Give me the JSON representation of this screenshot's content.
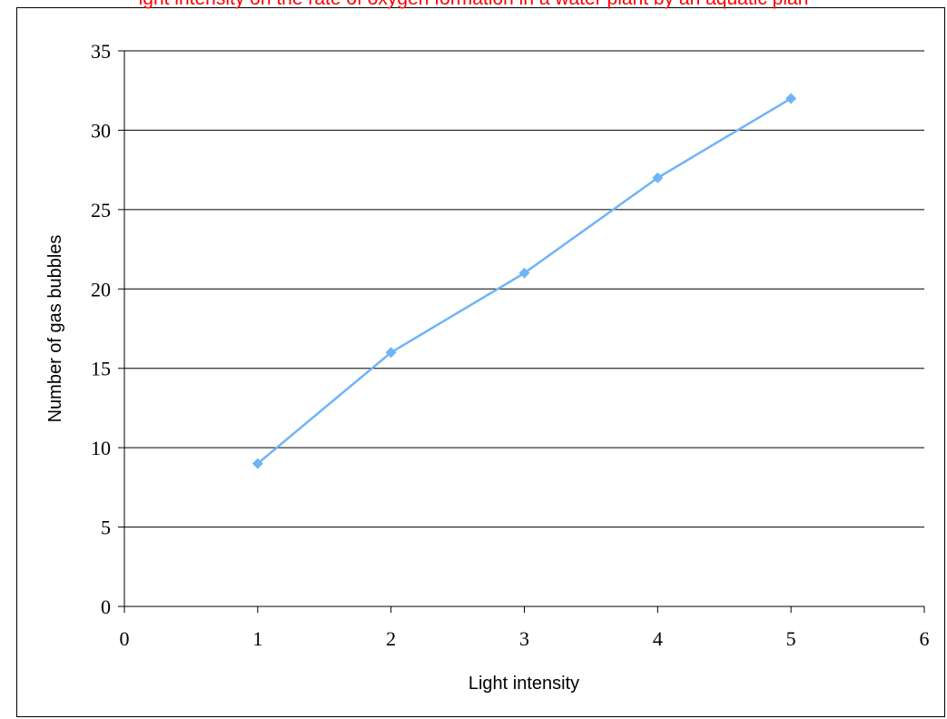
{
  "chart_data": {
    "type": "scatter",
    "title": "ight intensity on the rate of oxygen formation in a water plant by an aquatic plan",
    "xlabel": "Light intensity",
    "ylabel": "Number of gas bubbles",
    "xlim": [
      0,
      6
    ],
    "ylim": [
      0,
      35
    ],
    "xticks": [
      "0",
      "1",
      "2",
      "3",
      "4",
      "5",
      "6"
    ],
    "yticks": [
      "0",
      "5",
      "10",
      "15",
      "20",
      "25",
      "30",
      "35"
    ],
    "grid": "horizontal",
    "series": [
      {
        "x": [
          1,
          2,
          3,
          4,
          5
        ],
        "y": [
          9,
          16,
          21,
          27,
          32
        ],
        "color": "#6fb4f6",
        "marker": "diamond",
        "line": true
      }
    ]
  }
}
